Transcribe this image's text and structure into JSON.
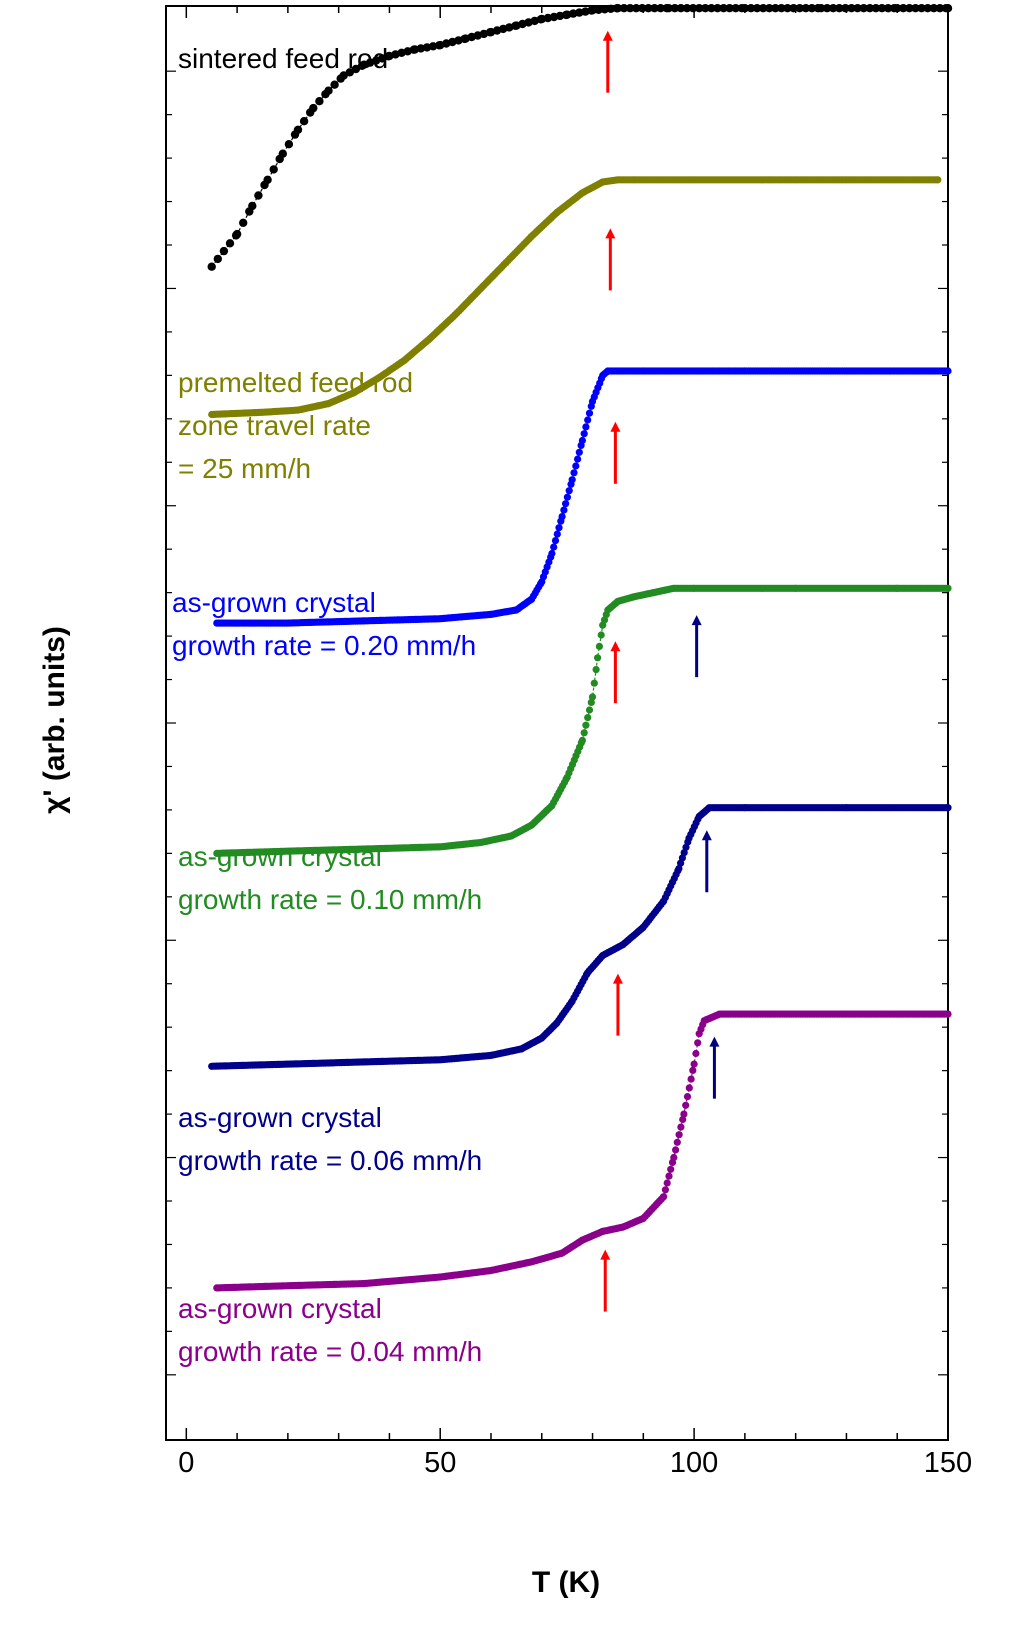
{
  "chart_data": {
    "type": "scatter",
    "title": "",
    "xlabel": "T (K)",
    "ylabel": "χ' (arb. units)",
    "xlim": [
      -4,
      150
    ],
    "ylim": [
      -0.3,
      6.3
    ],
    "y_ticks_labeled": false,
    "x_ticks": [
      0,
      50,
      100,
      150
    ],
    "x_tick_labels": [
      "0",
      "50",
      "100",
      "150"
    ],
    "colors": {
      "sintered": "#000000",
      "premelted": "#808000",
      "g020": "#0000ff",
      "g010": "#228b22",
      "g006": "#00008b",
      "g004": "#8b008b",
      "arrow_red": "#ff0000",
      "arrow_navy": "#000080"
    },
    "series": [
      {
        "name": "sintered feed rod",
        "label_lines": [
          "sintered feed rod"
        ],
        "color": "#000000",
        "marker_size": "large",
        "points": [
          [
            5,
            5.1
          ],
          [
            10,
            5.25
          ],
          [
            13,
            5.38
          ],
          [
            16,
            5.5
          ],
          [
            19,
            5.62
          ],
          [
            22,
            5.73
          ],
          [
            25,
            5.83
          ],
          [
            28,
            5.91
          ],
          [
            31,
            5.98
          ],
          [
            35,
            6.03
          ],
          [
            40,
            6.07
          ],
          [
            45,
            6.1
          ],
          [
            50,
            6.12
          ],
          [
            55,
            6.15
          ],
          [
            60,
            6.18
          ],
          [
            65,
            6.21
          ],
          [
            70,
            6.24
          ],
          [
            75,
            6.26
          ],
          [
            80,
            6.28
          ],
          [
            85,
            6.29
          ],
          [
            95,
            6.29
          ],
          [
            110,
            6.29
          ],
          [
            125,
            6.29
          ],
          [
            140,
            6.29
          ],
          [
            150,
            6.29
          ]
        ]
      },
      {
        "name": "premelted feed rod, zone travel rate = 25 mm/h",
        "label_lines": [
          "premelted feed rod",
          "zone travel rate",
          "= 25 mm/h"
        ],
        "color": "#808000",
        "marker_size": "small",
        "points": [
          [
            5,
            4.42
          ],
          [
            15,
            4.43
          ],
          [
            22,
            4.44
          ],
          [
            28,
            4.47
          ],
          [
            33,
            4.52
          ],
          [
            38,
            4.59
          ],
          [
            43,
            4.67
          ],
          [
            48,
            4.77
          ],
          [
            53,
            4.88
          ],
          [
            58,
            5.0
          ],
          [
            63,
            5.12
          ],
          [
            68,
            5.24
          ],
          [
            73,
            5.35
          ],
          [
            78,
            5.44
          ],
          [
            82,
            5.49
          ],
          [
            85,
            5.5
          ],
          [
            100,
            5.5
          ],
          [
            115,
            5.5
          ],
          [
            130,
            5.5
          ],
          [
            148,
            5.5
          ]
        ]
      },
      {
        "name": "as-grown crystal, growth rate = 0.20 mm/h",
        "label_lines": [
          "as-grown crystal",
          "growth rate = 0.20 mm/h"
        ],
        "color": "#0000ff",
        "marker_size": "small",
        "points": [
          [
            6,
            3.46
          ],
          [
            20,
            3.46
          ],
          [
            35,
            3.47
          ],
          [
            50,
            3.48
          ],
          [
            60,
            3.5
          ],
          [
            65,
            3.52
          ],
          [
            68,
            3.57
          ],
          [
            70,
            3.65
          ],
          [
            72,
            3.78
          ],
          [
            74,
            3.95
          ],
          [
            76,
            4.12
          ],
          [
            78,
            4.3
          ],
          [
            80,
            4.48
          ],
          [
            82,
            4.6
          ],
          [
            83,
            4.62
          ],
          [
            90,
            4.62
          ],
          [
            110,
            4.62
          ],
          [
            130,
            4.62
          ],
          [
            150,
            4.62
          ]
        ]
      },
      {
        "name": "as-grown crystal, growth rate = 0.10 mm/h",
        "label_lines": [
          "as-grown crystal",
          "growth rate = 0.10 mm/h"
        ],
        "color": "#228b22",
        "marker_size": "small",
        "points": [
          [
            6,
            2.4
          ],
          [
            20,
            2.41
          ],
          [
            35,
            2.42
          ],
          [
            50,
            2.43
          ],
          [
            58,
            2.45
          ],
          [
            64,
            2.48
          ],
          [
            68,
            2.53
          ],
          [
            72,
            2.62
          ],
          [
            75,
            2.75
          ],
          [
            78,
            2.92
          ],
          [
            80,
            3.12
          ],
          [
            81,
            3.3
          ],
          [
            82,
            3.45
          ],
          [
            83,
            3.52
          ],
          [
            85,
            3.56
          ],
          [
            88,
            3.58
          ],
          [
            92,
            3.6
          ],
          [
            96,
            3.62
          ],
          [
            100,
            3.62
          ],
          [
            120,
            3.62
          ],
          [
            140,
            3.62
          ],
          [
            150,
            3.62
          ]
        ]
      },
      {
        "name": "as-grown crystal, growth rate = 0.06 mm/h",
        "label_lines": [
          "as-grown crystal",
          "growth rate = 0.06 mm/h"
        ],
        "color": "#00008b",
        "marker_size": "small",
        "points": [
          [
            5,
            1.42
          ],
          [
            20,
            1.43
          ],
          [
            35,
            1.44
          ],
          [
            50,
            1.45
          ],
          [
            60,
            1.47
          ],
          [
            66,
            1.5
          ],
          [
            70,
            1.55
          ],
          [
            73,
            1.62
          ],
          [
            76,
            1.72
          ],
          [
            79,
            1.85
          ],
          [
            82,
            1.93
          ],
          [
            86,
            1.98
          ],
          [
            90,
            2.06
          ],
          [
            94,
            2.18
          ],
          [
            97,
            2.33
          ],
          [
            99,
            2.47
          ],
          [
            101,
            2.57
          ],
          [
            103,
            2.61
          ],
          [
            110,
            2.61
          ],
          [
            130,
            2.61
          ],
          [
            150,
            2.61
          ]
        ]
      },
      {
        "name": "as-grown crystal, growth rate = 0.04 mm/h",
        "label_lines": [
          "as-grown crystal",
          "growth rate = 0.04 mm/h"
        ],
        "color": "#8b008b",
        "marker_size": "small",
        "points": [
          [
            6,
            0.4
          ],
          [
            20,
            0.41
          ],
          [
            35,
            0.42
          ],
          [
            50,
            0.45
          ],
          [
            60,
            0.48
          ],
          [
            68,
            0.52
          ],
          [
            74,
            0.56
          ],
          [
            78,
            0.62
          ],
          [
            82,
            0.66
          ],
          [
            86,
            0.68
          ],
          [
            90,
            0.72
          ],
          [
            94,
            0.82
          ],
          [
            96,
            1.0
          ],
          [
            98,
            1.2
          ],
          [
            100,
            1.43
          ],
          [
            101,
            1.57
          ],
          [
            102,
            1.63
          ],
          [
            105,
            1.66
          ],
          [
            115,
            1.66
          ],
          [
            130,
            1.66
          ],
          [
            150,
            1.66
          ]
        ]
      }
    ],
    "arrows": [
      {
        "x": 83,
        "y": 6.26,
        "color": "red"
      },
      {
        "x": 83.5,
        "y": 5.35,
        "color": "red"
      },
      {
        "x": 84.5,
        "y": 4.46,
        "color": "red"
      },
      {
        "x": 84.5,
        "y": 3.45,
        "color": "red"
      },
      {
        "x": 100.5,
        "y": 3.57,
        "color": "navy"
      },
      {
        "x": 102.5,
        "y": 2.58,
        "color": "navy"
      },
      {
        "x": 85,
        "y": 1.92,
        "color": "red"
      },
      {
        "x": 104,
        "y": 1.63,
        "color": "navy"
      },
      {
        "x": 82.5,
        "y": 0.65,
        "color": "red"
      }
    ]
  }
}
